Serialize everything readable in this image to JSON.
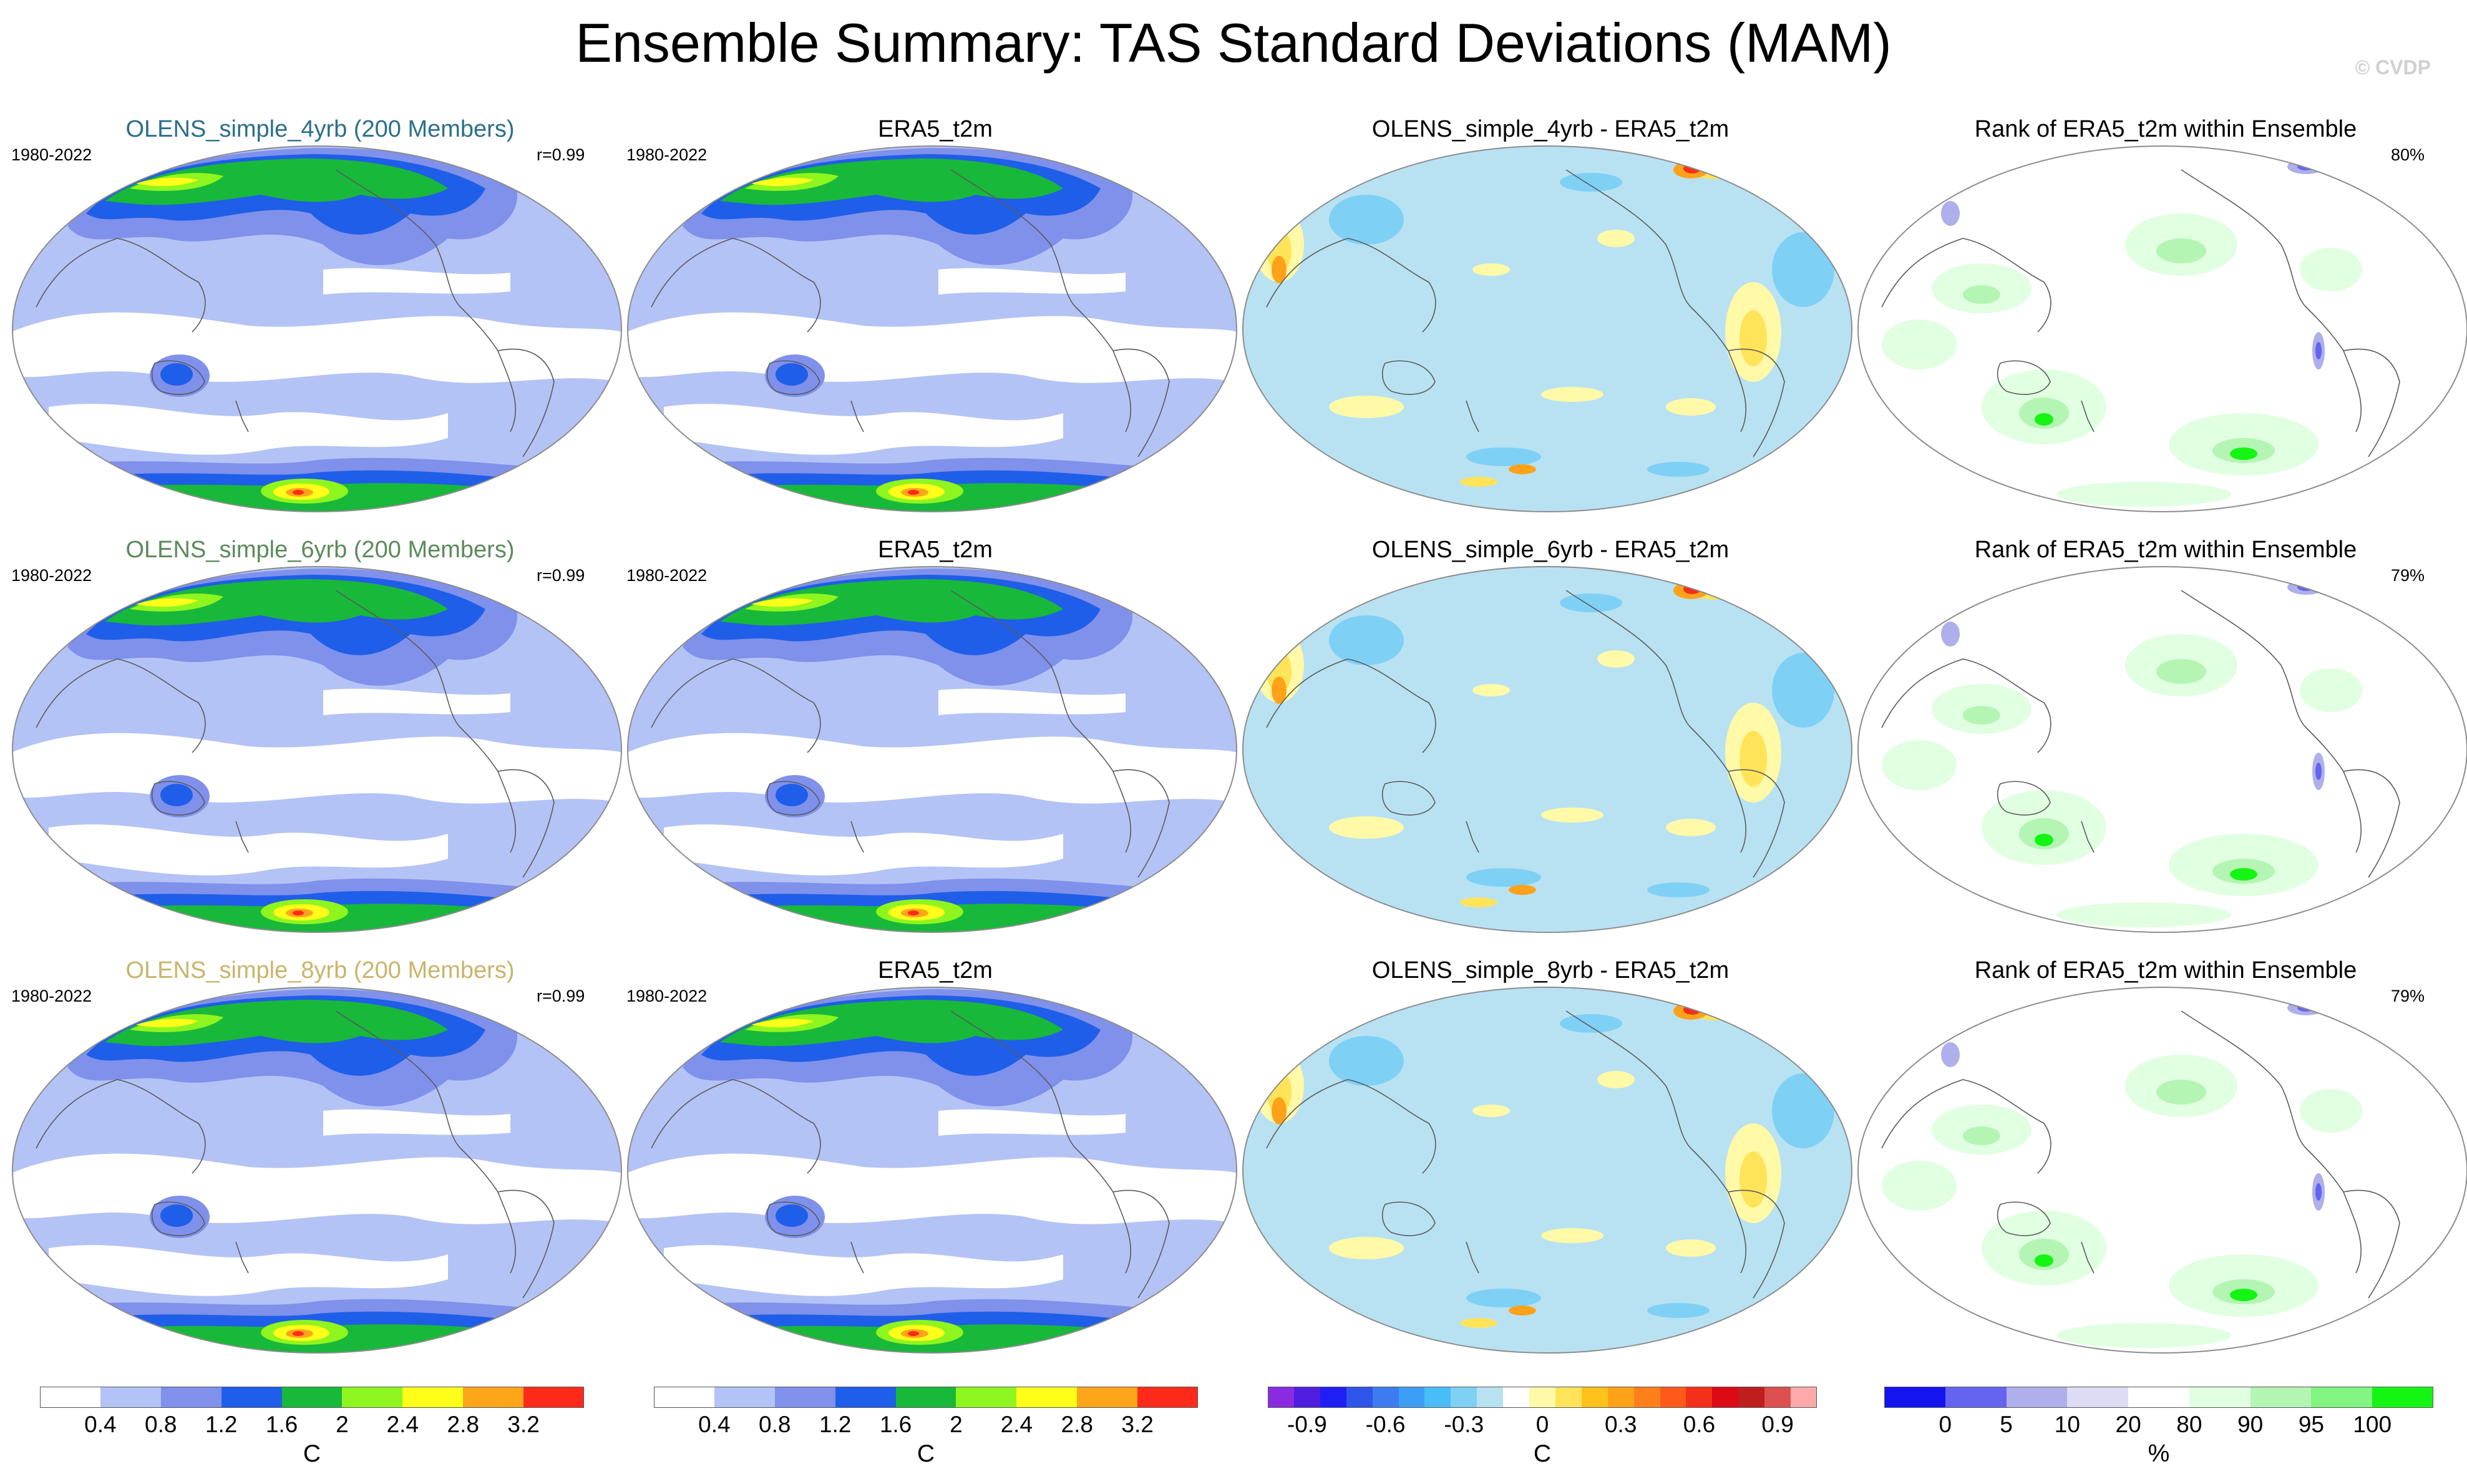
{
  "title": "Ensemble Summary: TAS Standard Deviations (MAM)",
  "watermark": "© CVDP",
  "rows": [
    {
      "model_title": "OLENS_simple_4yrb (200 Members)",
      "model_color": "#2a6f8a",
      "period": "1980-2022",
      "correlation": "r=0.99",
      "obs_title": "ERA5_t2m",
      "obs_period": "1980-2022",
      "diff_title": "OLENS_simple_4yrb - ERA5_t2m",
      "rank_title": "Rank of ERA5_t2m within Ensemble",
      "rank_pct": "80%"
    },
    {
      "model_title": "OLENS_simple_6yrb (200 Members)",
      "model_color": "#5b8a5b",
      "period": "1980-2022",
      "correlation": "r=0.99",
      "obs_title": "ERA5_t2m",
      "obs_period": "1980-2022",
      "diff_title": "OLENS_simple_6yrb - ERA5_t2m",
      "rank_title": "Rank of ERA5_t2m within Ensemble",
      "rank_pct": "79%"
    },
    {
      "model_title": "OLENS_simple_8yrb (200 Members)",
      "model_color": "#c9b46a",
      "period": "1980-2022",
      "correlation": "r=0.99",
      "obs_title": "ERA5_t2m",
      "obs_period": "1980-2022",
      "diff_title": "OLENS_simple_8yrb - ERA5_t2m",
      "rank_title": "Rank of ERA5_t2m within Ensemble",
      "rank_pct": "79%"
    }
  ],
  "colorbars": [
    {
      "name": "std-dev",
      "colors": [
        "#ffffff",
        "#b4c3f5",
        "#7f91eb",
        "#1f5ee8",
        "#18b83a",
        "#8ff51e",
        "#ffff1a",
        "#ffa51a",
        "#ff2a1a"
      ],
      "labels": [
        "0.4",
        "0.8",
        "1.2",
        "1.6",
        "2",
        "2.4",
        "2.8",
        "3.2"
      ],
      "unit": "C"
    },
    {
      "name": "std-dev-obs",
      "colors": [
        "#ffffff",
        "#b4c3f5",
        "#7f91eb",
        "#1f5ee8",
        "#18b83a",
        "#8ff51e",
        "#ffff1a",
        "#ffa51a",
        "#ff2a1a"
      ],
      "labels": [
        "0.4",
        "0.8",
        "1.2",
        "1.6",
        "2",
        "2.4",
        "2.8",
        "3.2"
      ],
      "unit": "C"
    },
    {
      "name": "difference",
      "colors": [
        "#8a2be2",
        "#4f1ee0",
        "#1f1ff5",
        "#2f55e8",
        "#3c7cf0",
        "#3c9ef5",
        "#48bdf8",
        "#7fd0f5",
        "#b8e2f2",
        "#ffffff",
        "#fff9a8",
        "#ffe45a",
        "#ffc21a",
        "#ffa21a",
        "#ff7f1a",
        "#ff5a1a",
        "#f5301a",
        "#dc0a14",
        "#be1e1e",
        "#dc5050",
        "#ffaaaa"
      ],
      "labels": [
        "-0.9",
        "-0.6",
        "-0.3",
        "0",
        "0.3",
        "0.6",
        "0.9"
      ],
      "unit": "C"
    },
    {
      "name": "rank",
      "colors": [
        "#1414f0",
        "#6464f0",
        "#afafeb",
        "#dcdcf5",
        "#ffffff",
        "#e1ffe1",
        "#b4f5b4",
        "#82f582",
        "#14f514"
      ],
      "labels": [
        "0",
        "5",
        "10",
        "20",
        "80",
        "90",
        "95",
        "100"
      ],
      "unit": "%"
    }
  ]
}
